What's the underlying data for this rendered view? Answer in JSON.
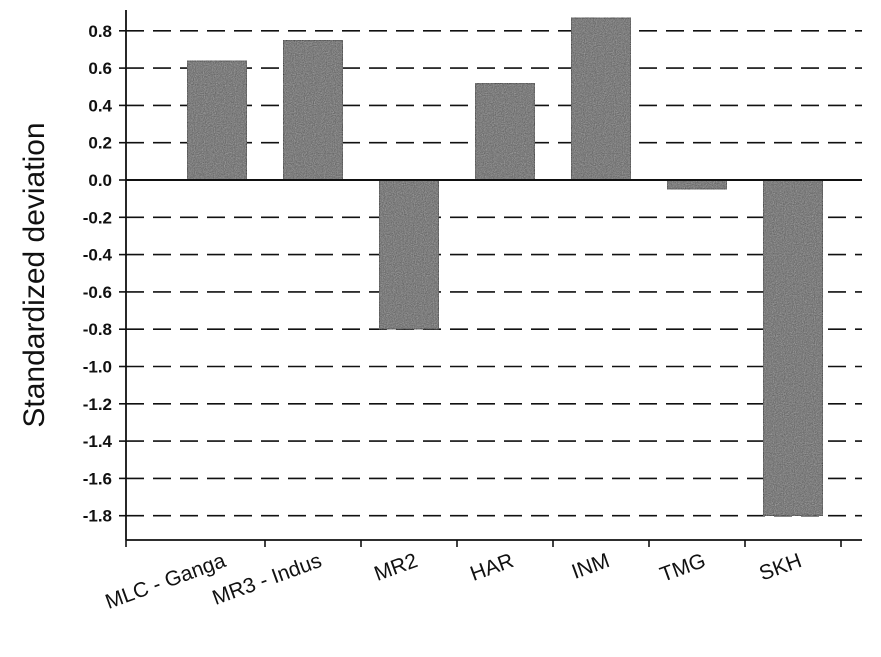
{
  "chart_data": {
    "type": "bar",
    "categories": [
      "MLC - Ganga",
      "MR3 - Indus",
      "MR2",
      "HAR",
      "INM",
      "TMG",
      "SKH"
    ],
    "values": [
      0.64,
      0.75,
      -0.8,
      0.52,
      0.87,
      -0.05,
      -1.8
    ],
    "title": "",
    "xlabel": "",
    "ylabel": "Standardized deviation",
    "ylim": [
      -1.9,
      0.9
    ],
    "yticks": [
      "0.8",
      "0.6",
      "0.4",
      "0.2",
      "0.0",
      "-0.2",
      "-0.4",
      "-0.6",
      "-0.8",
      "-1.0",
      "-1.2",
      "-1.4",
      "-1.6",
      "-1.8"
    ],
    "ytick_values": [
      0.8,
      0.6,
      0.4,
      0.2,
      0.0,
      -0.2,
      -0.4,
      -0.6,
      -0.8,
      -1.0,
      -1.2,
      -1.4,
      -1.6,
      -1.8
    ],
    "grid": true,
    "grid_style": "dashed",
    "legend": "none"
  },
  "colors": {
    "bar_fill": "#5a5a5a",
    "ink": "#111111",
    "background": "#ffffff"
  }
}
